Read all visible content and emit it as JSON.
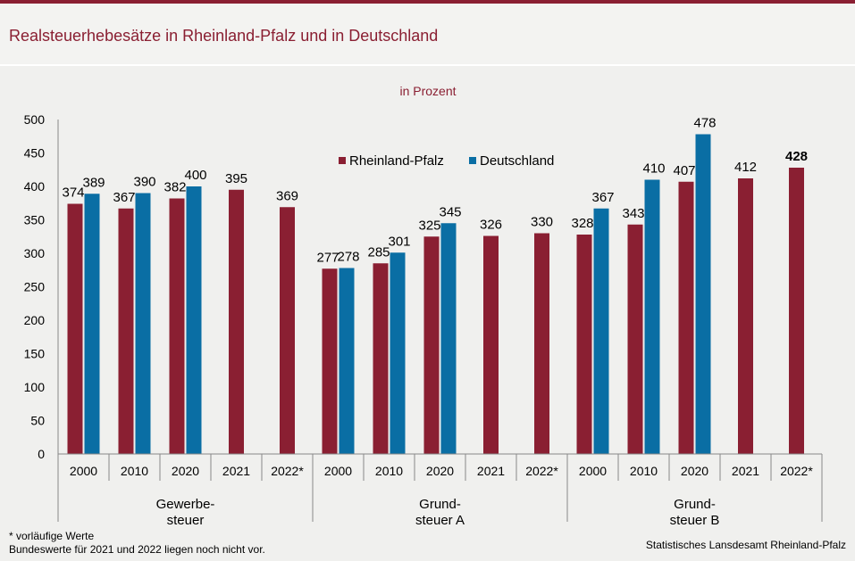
{
  "header": {
    "title": "Realsteuerhebesätze in Rheinland-Pfalz und in Deutschland"
  },
  "chart_data": {
    "type": "bar",
    "subtitle": "in Prozent",
    "ylim": [
      0,
      500
    ],
    "yticks": [
      0,
      50,
      100,
      150,
      200,
      250,
      300,
      350,
      400,
      450,
      500
    ],
    "legend": {
      "position": "top-center",
      "entries": [
        "Rheinland-Pfalz",
        "Deutschland"
      ]
    },
    "colors": {
      "rp": "#8a1f32",
      "de": "#0a6ea4"
    },
    "groups": [
      {
        "label_lines": [
          "Gewerbe-",
          "steuer"
        ],
        "categories": [
          "2000",
          "2010",
          "2020",
          "2021",
          "2022*"
        ],
        "series": [
          {
            "name": "Rheinland-Pfalz",
            "values": [
              374,
              367,
              382,
              395,
              369
            ]
          },
          {
            "name": "Deutschland",
            "values": [
              389,
              390,
              400,
              null,
              null
            ]
          }
        ]
      },
      {
        "label_lines": [
          "Grund-",
          "steuer A"
        ],
        "categories": [
          "2000",
          "2010",
          "2020",
          "2021",
          "2022*"
        ],
        "series": [
          {
            "name": "Rheinland-Pfalz",
            "values": [
              277,
              285,
              325,
              326,
              330
            ]
          },
          {
            "name": "Deutschland",
            "values": [
              278,
              301,
              345,
              null,
              null
            ]
          }
        ]
      },
      {
        "label_lines": [
          "Grund-",
          "steuer B"
        ],
        "categories": [
          "2000",
          "2010",
          "2020",
          "2021",
          "2022*"
        ],
        "series": [
          {
            "name": "Rheinland-Pfalz",
            "values": [
              328,
              343,
              407,
              412,
              428
            ]
          },
          {
            "name": "Deutschland",
            "values": [
              367,
              410,
              478,
              null,
              null
            ]
          }
        ]
      }
    ],
    "highlighted_label": "428"
  },
  "footer": {
    "note_line1": "* vorläufige  Werte",
    "note_line2": "Bundeswerte  für 2021 und 2022 liegen  noch nicht vor.",
    "source": "Statistisches Lansdesamt  Rheinland-Pfalz"
  }
}
